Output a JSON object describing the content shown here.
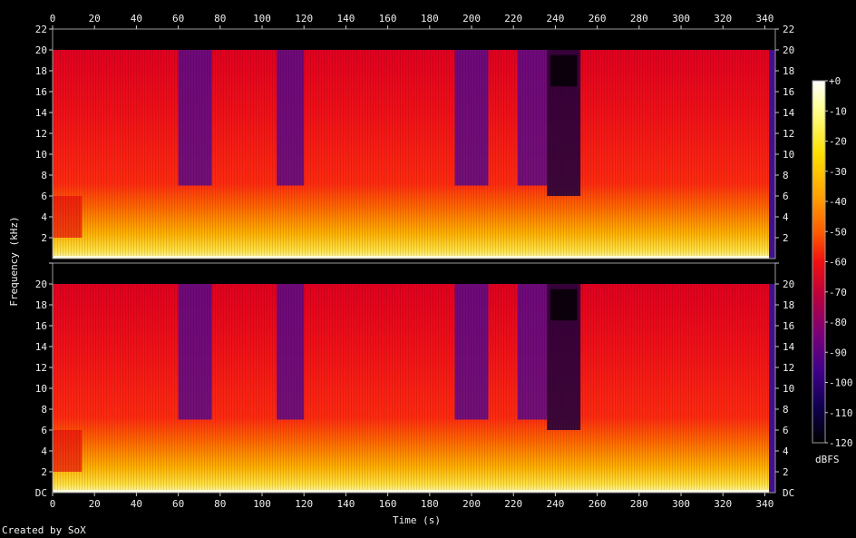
{
  "chart_data": {
    "type": "heatmap",
    "title": "",
    "xlabel": "Time (s)",
    "ylabel": "Frequency (kHz)",
    "credit": "Created by SoX",
    "colorbar_label": "dBFS",
    "x_ticks": [
      "0",
      "20",
      "40",
      "60",
      "80",
      "100",
      "120",
      "140",
      "160",
      "180",
      "200",
      "220",
      "240",
      "260",
      "280",
      "300",
      "320",
      "340"
    ],
    "y_ticks": [
      "2",
      "4",
      "6",
      "8",
      "10",
      "12",
      "14",
      "16",
      "18",
      "20",
      "22"
    ],
    "y_bottom_label": "DC",
    "colorbar_ticks": [
      "+0",
      "-10",
      "-20",
      "-30",
      "-40",
      "-50",
      "-60",
      "-70",
      "-80",
      "-90",
      "-100",
      "-110",
      "-120"
    ],
    "xlim": [
      0,
      345
    ],
    "ylim_khz": [
      0,
      22
    ],
    "zlim_dbfs": [
      -120,
      0
    ],
    "channels": [
      {
        "name": "",
        "lowpass_cutoff_khz": 20,
        "quiet_intro_end_s": 14,
        "trail_off_start_s": 342,
        "segments": [
          {
            "start_s": 0,
            "end_s": 14,
            "high_band_level": "red"
          },
          {
            "start_s": 14,
            "end_s": 28,
            "high_band_level": "red"
          },
          {
            "start_s": 28,
            "end_s": 60,
            "high_band_level": "red"
          },
          {
            "start_s": 60,
            "end_s": 76,
            "high_band_level": "purple"
          },
          {
            "start_s": 76,
            "end_s": 107,
            "high_band_level": "red"
          },
          {
            "start_s": 107,
            "end_s": 120,
            "high_band_level": "purple"
          },
          {
            "start_s": 120,
            "end_s": 192,
            "high_band_level": "red"
          },
          {
            "start_s": 192,
            "end_s": 208,
            "high_band_level": "purple"
          },
          {
            "start_s": 208,
            "end_s": 222,
            "high_band_level": "red"
          },
          {
            "start_s": 222,
            "end_s": 236,
            "high_band_level": "purple"
          },
          {
            "start_s": 236,
            "end_s": 252,
            "high_band_level": "dark"
          },
          {
            "start_s": 252,
            "end_s": 342,
            "high_band_level": "red"
          }
        ]
      },
      {
        "name": "",
        "lowpass_cutoff_khz": 20,
        "quiet_intro_end_s": 14,
        "trail_off_start_s": 342,
        "segments": [
          {
            "start_s": 0,
            "end_s": 14,
            "high_band_level": "red"
          },
          {
            "start_s": 14,
            "end_s": 28,
            "high_band_level": "red"
          },
          {
            "start_s": 28,
            "end_s": 60,
            "high_band_level": "red"
          },
          {
            "start_s": 60,
            "end_s": 76,
            "high_band_level": "purple"
          },
          {
            "start_s": 76,
            "end_s": 107,
            "high_band_level": "red"
          },
          {
            "start_s": 107,
            "end_s": 120,
            "high_band_level": "purple"
          },
          {
            "start_s": 120,
            "end_s": 192,
            "high_band_level": "red"
          },
          {
            "start_s": 192,
            "end_s": 208,
            "high_band_level": "purple"
          },
          {
            "start_s": 208,
            "end_s": 222,
            "high_band_level": "red"
          },
          {
            "start_s": 222,
            "end_s": 236,
            "high_band_level": "purple"
          },
          {
            "start_s": 236,
            "end_s": 252,
            "high_band_level": "dark"
          },
          {
            "start_s": 252,
            "end_s": 342,
            "high_band_level": "red"
          }
        ]
      }
    ],
    "colormap": [
      "#ffffff",
      "#ffff90",
      "#ffe600",
      "#ffb000",
      "#ff7000",
      "#ff2a00",
      "#e80010",
      "#b00040",
      "#7a0070",
      "#4a0090",
      "#20007a",
      "#080040",
      "#000000"
    ]
  }
}
